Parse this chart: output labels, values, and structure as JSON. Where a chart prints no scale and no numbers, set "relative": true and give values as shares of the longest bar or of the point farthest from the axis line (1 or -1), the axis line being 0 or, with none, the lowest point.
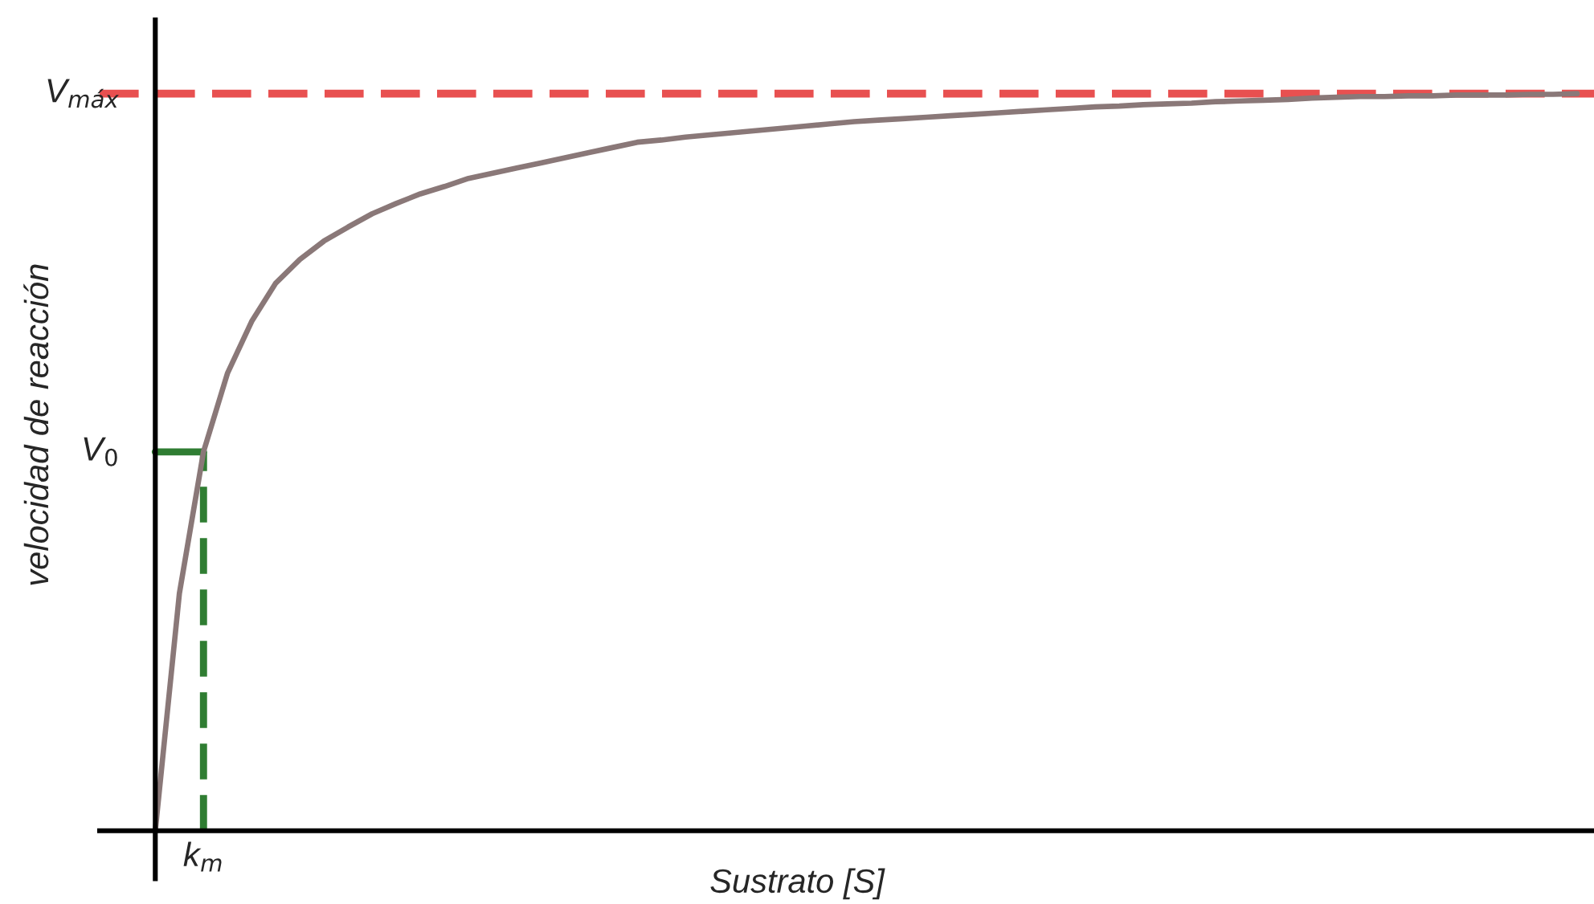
{
  "chart_data": {
    "type": "line",
    "relative": true,
    "xlabel": "Sustrato [S]",
    "ylabel": "velocidad de reacción",
    "categories": [
      null,
      null,
      null,
      null,
      null,
      null,
      null,
      null,
      null,
      null,
      null,
      null,
      null,
      null,
      null,
      null,
      null,
      null,
      null,
      null,
      null,
      null,
      null,
      null,
      null,
      null,
      null,
      null,
      null,
      null,
      null,
      null,
      null,
      null,
      null,
      null,
      null,
      null,
      null,
      null,
      null,
      null,
      null,
      null,
      null,
      null,
      null,
      null,
      null,
      null,
      null,
      null,
      null,
      null,
      null,
      null,
      null,
      null,
      null,
      null
    ],
    "series": [
      {
        "color": "#8a7878",
        "line_style": "solid",
        "values": [
          0,
          0.322,
          0.514,
          0.621,
          0.691,
          0.743,
          0.775,
          0.8,
          0.819,
          0.837,
          0.851,
          0.864,
          0.874,
          0.885,
          0.892,
          0.899,
          0.906,
          0.913,
          0.92,
          0.927,
          0.934,
          0.937,
          0.941,
          0.944,
          0.947,
          0.95,
          0.953,
          0.956,
          0.959,
          0.962,
          0.964,
          0.966,
          0.968,
          0.97,
          0.972,
          0.974,
          0.976,
          0.978,
          0.98,
          0.982,
          0.983,
          0.985,
          0.986,
          0.987,
          0.989,
          0.99,
          0.991,
          0.992,
          0.994,
          0.995,
          0.996,
          0.996,
          0.997,
          0.997,
          0.998,
          0.998,
          0.998,
          0.999,
          0.999,
          1.0
        ]
      }
    ],
    "ref_lines": [
      {
        "axis": "y",
        "value": 1.0,
        "label": "V$_{máx}$",
        "color": "#e85050",
        "line_style": "dashed"
      },
      {
        "axis": "y",
        "value": 0.514,
        "label": "V$_{0}$",
        "color": "#2f7d32",
        "line_style": "solid"
      }
    ],
    "annotations": [
      "k$_{m}$"
    ],
    "marker": "none"
  }
}
